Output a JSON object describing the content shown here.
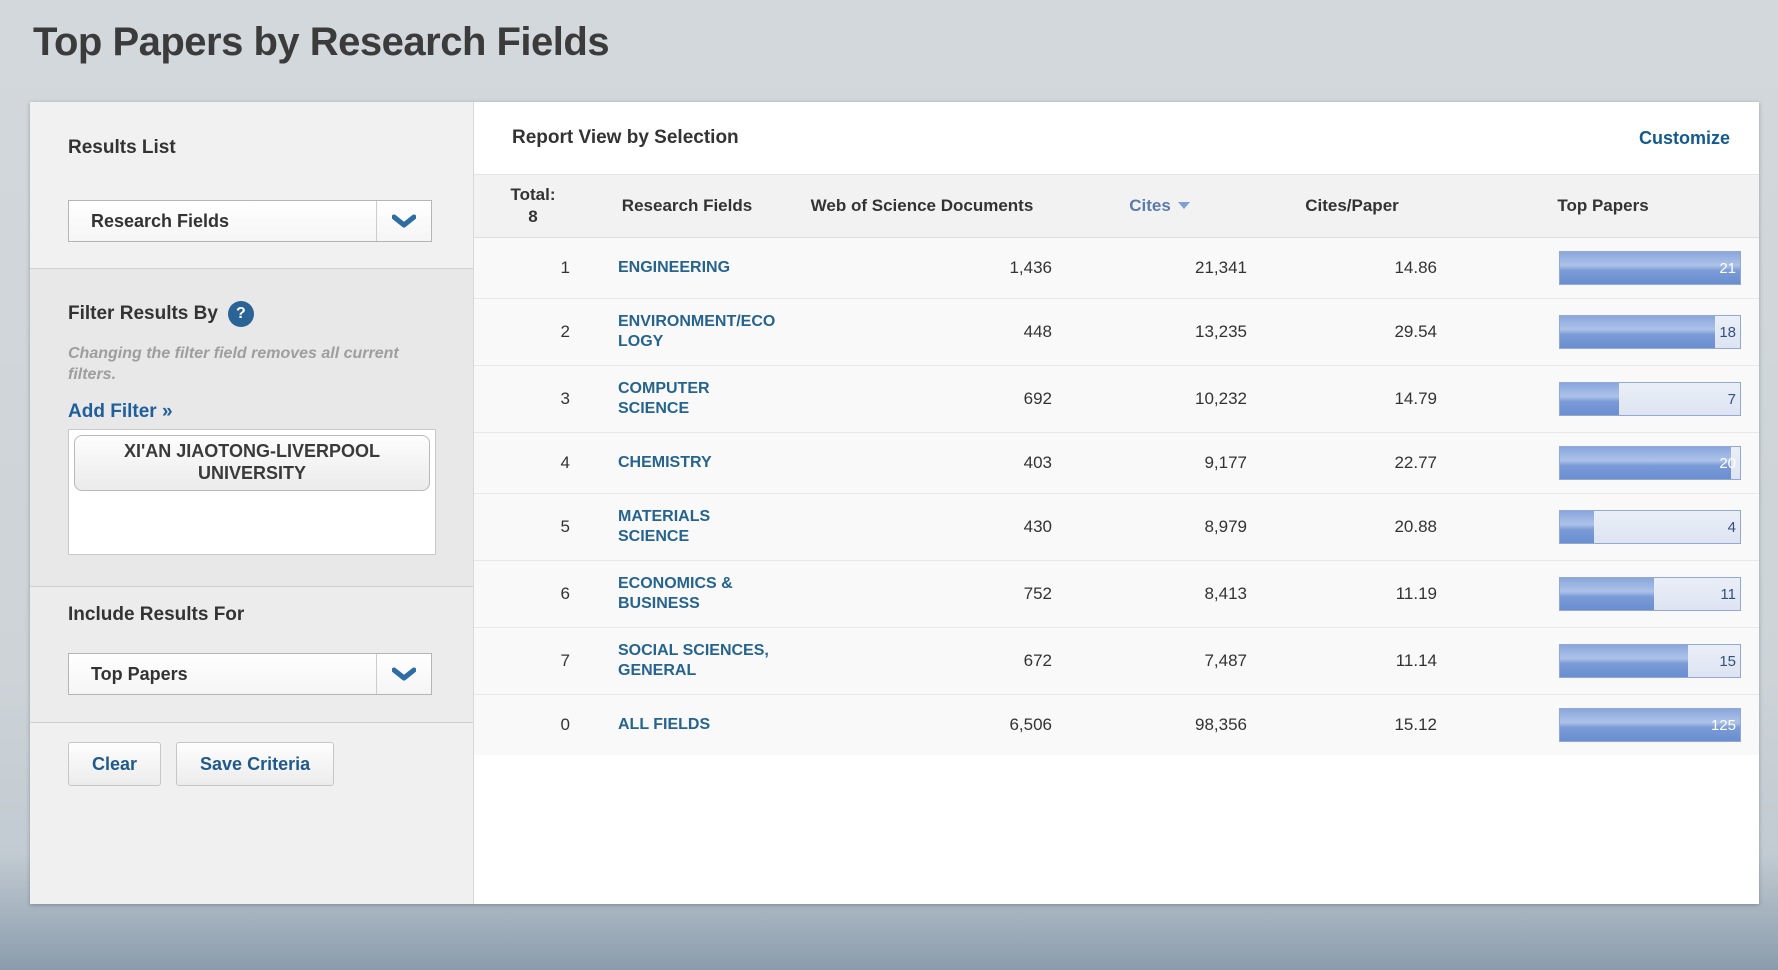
{
  "page": {
    "title": "Top Papers by Research Fields"
  },
  "sidebar": {
    "results_list": {
      "label": "Results List",
      "selected": "Research Fields"
    },
    "filter": {
      "heading": "Filter Results By",
      "help_icon": "?",
      "note": "Changing the filter field removes all current filters.",
      "add_filter_label": "Add Filter »",
      "filters": [
        "XI'AN JIAOTONG-LIVERPOOL UNIVERSITY"
      ]
    },
    "include_results": {
      "label": "Include Results For",
      "selected": "Top Papers"
    },
    "actions": {
      "clear_label": "Clear",
      "save_label": "Save Criteria"
    }
  },
  "report": {
    "title": "Report View by Selection",
    "customize_label": "Customize",
    "total_label": "Total:",
    "total_value": "8",
    "columns": {
      "fields": "Research Fields",
      "documents": "Web of Science Documents",
      "cites": "Cites",
      "cites_per_paper": "Cites/Paper",
      "top_papers": "Top Papers"
    },
    "sorted_column": "Cites",
    "sort_direction": "desc",
    "rows": [
      {
        "rank": "1",
        "field": "ENGINEERING",
        "documents": "1,436",
        "cites": "21,341",
        "cites_per_paper": "14.86",
        "top_papers": "21",
        "bar_pct": 100
      },
      {
        "rank": "2",
        "field": "ENVIRONMENT/ECOLOGY",
        "documents": "448",
        "cites": "13,235",
        "cites_per_paper": "29.54",
        "top_papers": "18",
        "bar_pct": 86
      },
      {
        "rank": "3",
        "field": "COMPUTER SCIENCE",
        "documents": "692",
        "cites": "10,232",
        "cites_per_paper": "14.79",
        "top_papers": "7",
        "bar_pct": 33
      },
      {
        "rank": "4",
        "field": "CHEMISTRY",
        "documents": "403",
        "cites": "9,177",
        "cites_per_paper": "22.77",
        "top_papers": "20",
        "bar_pct": 95
      },
      {
        "rank": "5",
        "field": "MATERIALS SCIENCE",
        "documents": "430",
        "cites": "8,979",
        "cites_per_paper": "20.88",
        "top_papers": "4",
        "bar_pct": 19
      },
      {
        "rank": "6",
        "field": "ECONOMICS & BUSINESS",
        "documents": "752",
        "cites": "8,413",
        "cites_per_paper": "11.19",
        "top_papers": "11",
        "bar_pct": 52
      },
      {
        "rank": "7",
        "field": "SOCIAL SCIENCES, GENERAL",
        "documents": "672",
        "cites": "7,487",
        "cites_per_paper": "11.14",
        "top_papers": "15",
        "bar_pct": 71
      },
      {
        "rank": "0",
        "field": "ALL FIELDS",
        "documents": "6,506",
        "cites": "98,356",
        "cites_per_paper": "15.12",
        "top_papers": "125",
        "bar_pct": 100
      }
    ]
  },
  "colors": {
    "accent_link": "#1e5f9c",
    "field_link": "#26648f",
    "customize_link": "#135a8d",
    "sorted_header": "#5a7cad",
    "sorted_arrow": "#7f9fd7",
    "help_icon_bg": "#2a6496",
    "bar_border": "#92a9d6",
    "bar_fill_top": "#8aa6dc",
    "bar_fill_bottom": "#698ed0",
    "bar_track": "#dde4f1",
    "bar_label_on_fill": "#ffffff",
    "bar_label_on_track": "#33517f"
  }
}
